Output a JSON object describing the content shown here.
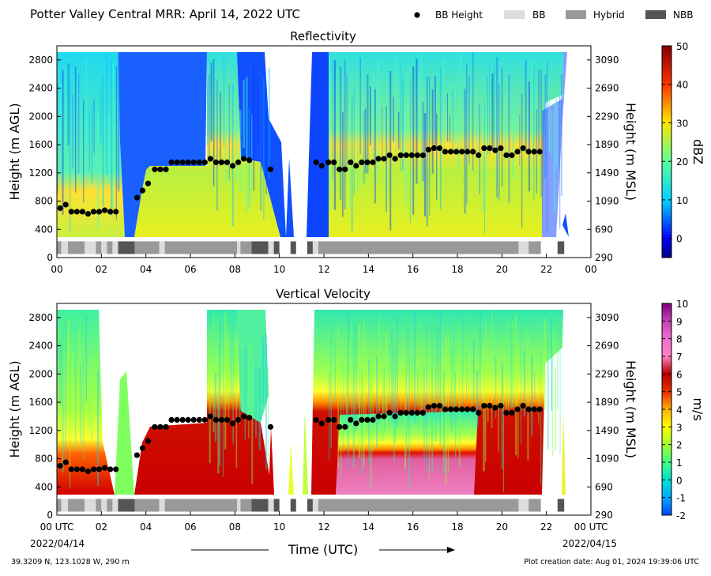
{
  "header": {
    "title": "Potter Valley Central MRR:  April 14, 2022 UTC",
    "legend": [
      {
        "label": "BB Height",
        "marker": "dot",
        "color": "#000000"
      },
      {
        "label": "BB",
        "marker": "box",
        "color": "#dcdcdc"
      },
      {
        "label": "Hybrid",
        "marker": "box",
        "color": "#999999"
      },
      {
        "label": "NBB",
        "marker": "box",
        "color": "#555555"
      }
    ]
  },
  "footer": {
    "location": "39.3209 N, 123.1028 W, 290 m",
    "xlabel": "Time (UTC)",
    "creation": "Plot creation date: Aug 01, 2024 19:39:06 UTC",
    "start_date": "2022/04/14",
    "end_date": "2022/04/15"
  },
  "chart_data": [
    {
      "type": "heatmap",
      "title": "Reflectivity",
      "ylabel": "Height (m AGL)",
      "ylabel_right": "Height (m MSL)",
      "xlim": [
        0,
        24
      ],
      "ylim": [
        0,
        3000
      ],
      "xticks": [
        "00",
        "02",
        "04",
        "06",
        "08",
        "10",
        "12",
        "14",
        "16",
        "18",
        "20",
        "22",
        "00"
      ],
      "yticks_left": [
        0,
        400,
        800,
        1200,
        1600,
        2000,
        2400,
        2800
      ],
      "yticks_right": [
        290,
        690,
        1090,
        1490,
        1890,
        2290,
        2690,
        3090
      ],
      "colorbar": {
        "label": "dBZ",
        "min": -5,
        "max": 50,
        "ticks": [
          0,
          10,
          20,
          30,
          40,
          50
        ]
      }
    },
    {
      "type": "heatmap",
      "title": "Vertical Velocity",
      "ylabel": "Height (m AGL)",
      "ylabel_right": "Height (m MSL)",
      "xlim": [
        0,
        24
      ],
      "ylim": [
        0,
        3000
      ],
      "xticks": [
        "00 UTC",
        "02",
        "04",
        "06",
        "08",
        "10",
        "12",
        "14",
        "16",
        "18",
        "20",
        "22",
        "00 UTC"
      ],
      "yticks_left": [
        0,
        400,
        800,
        1200,
        1600,
        2000,
        2400,
        2800
      ],
      "yticks_right": [
        290,
        690,
        1090,
        1490,
        1890,
        2290,
        2690,
        3090
      ],
      "colorbar": {
        "label": "m/s",
        "min": -2,
        "max": 10,
        "ticks": [
          -2,
          -1,
          0,
          1,
          2,
          3,
          4,
          5,
          6,
          7,
          8,
          9,
          10
        ]
      }
    }
  ],
  "bb_height": {
    "x": [
      0.15,
      0.4,
      0.65,
      0.9,
      1.15,
      1.4,
      1.65,
      1.9,
      2.15,
      2.4,
      2.65,
      3.6,
      3.85,
      4.1,
      4.4,
      4.65,
      4.9,
      5.15,
      5.4,
      5.65,
      5.9,
      6.15,
      6.4,
      6.65,
      6.9,
      7.15,
      7.4,
      7.65,
      7.9,
      8.15,
      8.4,
      8.65,
      9.6,
      11.65,
      11.9,
      12.2,
      12.45,
      12.7,
      12.95,
      13.2,
      13.45,
      13.7,
      13.95,
      14.2,
      14.45,
      14.7,
      14.95,
      15.2,
      15.45,
      15.7,
      15.95,
      16.2,
      16.45,
      16.7,
      16.95,
      17.2,
      17.45,
      17.7,
      17.95,
      18.2,
      18.45,
      18.7,
      18.95,
      19.2,
      19.45,
      19.7,
      19.95,
      20.2,
      20.45,
      20.7,
      20.95,
      21.2,
      21.45,
      21.7
    ],
    "y": [
      700,
      750,
      650,
      650,
      650,
      620,
      650,
      650,
      670,
      650,
      650,
      850,
      950,
      1050,
      1250,
      1250,
      1250,
      1350,
      1350,
      1350,
      1350,
      1350,
      1350,
      1350,
      1400,
      1350,
      1350,
      1350,
      1300,
      1350,
      1400,
      1380,
      1250,
      1350,
      1300,
      1350,
      1350,
      1250,
      1250,
      1350,
      1300,
      1350,
      1350,
      1350,
      1400,
      1400,
      1450,
      1400,
      1450,
      1450,
      1450,
      1450,
      1450,
      1530,
      1550,
      1550,
      1500,
      1500,
      1500,
      1500,
      1500,
      1500,
      1450,
      1550,
      1550,
      1520,
      1550,
      1450,
      1450,
      1500,
      1550,
      1500,
      1500,
      1500
    ]
  },
  "bb_type": [
    {
      "x0": 0.0,
      "x1": 0.2,
      "type": "Hybrid"
    },
    {
      "x0": 0.2,
      "x1": 0.5,
      "type": "BB"
    },
    {
      "x0": 0.5,
      "x1": 1.25,
      "type": "Hybrid"
    },
    {
      "x0": 1.25,
      "x1": 1.75,
      "type": "BB"
    },
    {
      "x0": 1.75,
      "x1": 2.0,
      "type": "Hybrid"
    },
    {
      "x0": 2.0,
      "x1": 2.25,
      "type": "BB"
    },
    {
      "x0": 2.25,
      "x1": 2.5,
      "type": "Hybrid"
    },
    {
      "x0": 2.5,
      "x1": 2.75,
      "type": "BB"
    },
    {
      "x0": 2.75,
      "x1": 3.5,
      "type": "NBB"
    },
    {
      "x0": 3.5,
      "x1": 4.6,
      "type": "Hybrid"
    },
    {
      "x0": 4.6,
      "x1": 4.85,
      "type": "BB"
    },
    {
      "x0": 4.85,
      "x1": 8.1,
      "type": "Hybrid"
    },
    {
      "x0": 8.1,
      "x1": 8.25,
      "type": "BB"
    },
    {
      "x0": 8.25,
      "x1": 8.75,
      "type": "Hybrid"
    },
    {
      "x0": 8.75,
      "x1": 9.5,
      "type": "NBB"
    },
    {
      "x0": 9.5,
      "x1": 9.75,
      "type": "BB"
    },
    {
      "x0": 9.75,
      "x1": 10.0,
      "type": "NBB"
    },
    {
      "x0": 10.5,
      "x1": 10.75,
      "type": "NBB"
    },
    {
      "x0": 11.25,
      "x1": 11.5,
      "type": "NBB"
    },
    {
      "x0": 11.5,
      "x1": 11.75,
      "type": "BB"
    },
    {
      "x0": 11.75,
      "x1": 20.75,
      "type": "Hybrid"
    },
    {
      "x0": 20.75,
      "x1": 21.2,
      "type": "BB"
    },
    {
      "x0": 21.2,
      "x1": 21.75,
      "type": "Hybrid"
    },
    {
      "x0": 22.5,
      "x1": 22.8,
      "type": "NBB"
    }
  ]
}
